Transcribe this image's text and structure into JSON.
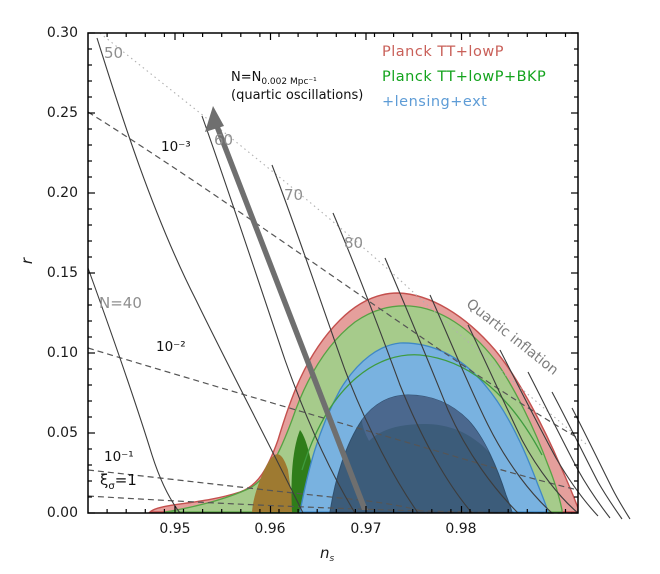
{
  "figure": {
    "background": "#ffffff",
    "ylabel": "r",
    "xlabel_main": "n",
    "xlabel_sub": "s"
  },
  "chart_data": {
    "type": "contour",
    "title": "",
    "xlabel": "n_s",
    "ylabel": "r",
    "xlim": [
      0.94,
      0.99
    ],
    "ylim": [
      0.0,
      0.3
    ],
    "x_tick_labels": [
      "0.95",
      "0.96",
      "0.97",
      "0.98"
    ],
    "y_tick_labels": [
      "0.30",
      "0.25",
      "0.20",
      "0.15",
      "0.10",
      "0.05",
      "0.00"
    ],
    "grid": false,
    "legend_position": "upper-right, no frame",
    "legend": [
      {
        "label": "Planck TT+lowP",
        "color": "#c96059"
      },
      {
        "label": "Planck TT+lowP+BKP",
        "color": "#13a31d"
      },
      {
        "label": "+lensing+ext",
        "color": "#5e9cd6"
      }
    ],
    "confidence_regions": [
      {
        "name": "Planck TT+lowP",
        "cl": "95%",
        "fill_color": "#e59f9c",
        "edge_color": "#c4504e",
        "r_peak_approx": 0.14,
        "ns_extent_at_r0_approx": [
          0.947,
          0.992
        ]
      },
      {
        "name": "Planck TT+lowP+BKP",
        "cl": "95%",
        "fill_color": "#a6cb8b",
        "edge_color": "#56a244",
        "r_peak_approx": 0.13,
        "ns_extent_at_r0_approx": [
          0.949,
          0.99
        ]
      },
      {
        "name": "+lensing+ext",
        "cl": "95%",
        "fill_color": "#79b2e0",
        "edge_color": "#3f88c5",
        "r_peak_approx": 0.105,
        "ns_extent_at_r0_approx": [
          0.962,
          0.988
        ]
      },
      {
        "name": "+lensing+ext inner",
        "cl": "68%",
        "fill_color": "#3c5c7a",
        "edge_color": "#2e4f6e",
        "r_peak_approx": 0.073,
        "ns_extent_at_r0_approx": [
          0.965,
          0.985
        ]
      }
    ],
    "overlap_patches": [
      {
        "name": "68% overlap (olive)",
        "color": "#9e7a31"
      },
      {
        "name": "68% overlap (dark green)",
        "color": "#2f7d1a"
      }
    ],
    "efold_contours": {
      "description": "thin solid gray lines of constant e-folds N",
      "values": [
        40,
        50,
        60,
        70,
        80
      ],
      "labels": [
        "N=40",
        "50",
        "60",
        "70",
        "80"
      ]
    },
    "coupling_contours": {
      "description": "dashed gray lines of constant coupling",
      "labels": [
        "10⁻³",
        "10⁻²",
        "10⁻¹",
        "ξσ=1"
      ],
      "xi_label": {
        "base": "ξ",
        "sub": "σ",
        "rest": "=1"
      }
    },
    "model_line": {
      "label": "Quartic inflation",
      "style": "dotted gray"
    },
    "trajectory": {
      "label_line1": "N=N",
      "label_line1_sub": "0.002 Mpc⁻¹",
      "label_line2": "(quartic oscillations)",
      "style": "thick gray arrow pointing up"
    }
  }
}
